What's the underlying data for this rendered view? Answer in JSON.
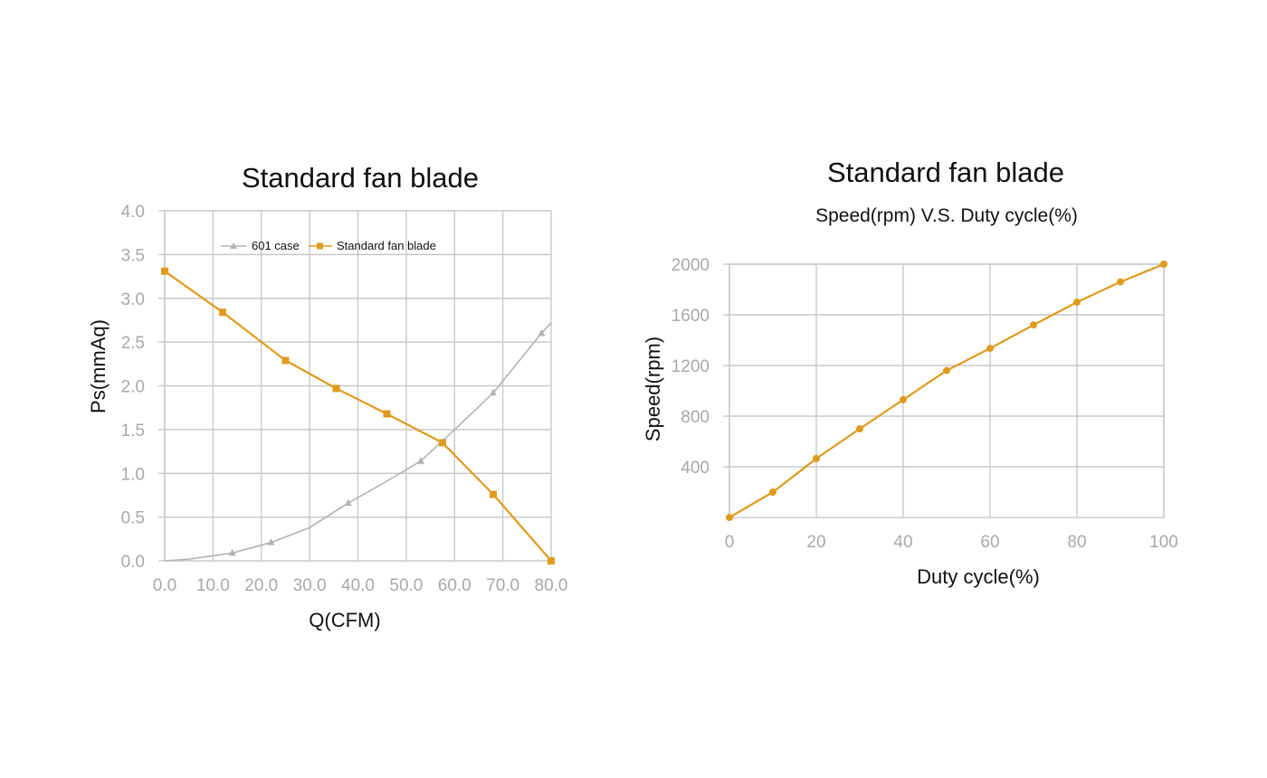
{
  "chart_data": [
    {
      "type": "line",
      "title": "Standard fan blade",
      "xlabel": "Q(CFM)",
      "ylabel": "Ps(mmAq)",
      "xlim": [
        0,
        80
      ],
      "ylim": [
        0,
        4
      ],
      "x_ticks": [
        "0.0",
        "10.0",
        "20.0",
        "30.0",
        "40.0",
        "50.0",
        "60.0",
        "70.0",
        "80.0"
      ],
      "y_ticks": [
        "0.0",
        "0.5",
        "1.0",
        "1.5",
        "2.0",
        "2.5",
        "3.0",
        "3.5",
        "4.0"
      ],
      "grid": true,
      "legend_position": "top",
      "series": [
        {
          "name": "601 case",
          "color": "#b3b3b3",
          "marker": "triangle",
          "x": [
            0,
            5,
            14,
            22,
            30,
            38,
            45,
            53,
            60,
            68,
            78,
            80
          ],
          "y": [
            0,
            0.02,
            0.09,
            0.21,
            0.38,
            0.66,
            0.88,
            1.14,
            1.5,
            1.92,
            2.6,
            2.72
          ],
          "marker_indices": [
            2,
            3,
            5,
            7,
            9,
            10
          ]
        },
        {
          "name": "Standard fan blade",
          "color": "#e09b1e",
          "marker": "square",
          "x": [
            0,
            12,
            25,
            35.5,
            46,
            57.5,
            68,
            80
          ],
          "y": [
            3.31,
            2.84,
            2.29,
            1.97,
            1.68,
            1.35,
            0.76,
            0
          ],
          "marker_indices": [
            0,
            1,
            2,
            3,
            4,
            5,
            6,
            7
          ]
        }
      ]
    },
    {
      "type": "line",
      "title": "Standard fan blade",
      "subtitle": "Speed(rpm) V.S. Duty cycle(%)",
      "xlabel": "Duty cycle(%)",
      "ylabel": "Speed(rpm)",
      "xlim": [
        0,
        100
      ],
      "ylim": [
        0,
        2000
      ],
      "x_ticks": [
        "0",
        "20",
        "40",
        "60",
        "80",
        "100"
      ],
      "y_ticks": [
        "400",
        "800",
        "1200",
        "1600",
        "2000"
      ],
      "grid": true,
      "series": [
        {
          "color": "#e09b1e",
          "marker": "circle",
          "x": [
            0,
            10,
            20,
            30,
            40,
            50,
            60,
            70,
            80,
            90,
            100
          ],
          "y": [
            0,
            200,
            465,
            700,
            930,
            1160,
            1335,
            1520,
            1700,
            1860,
            2000
          ]
        }
      ]
    }
  ]
}
